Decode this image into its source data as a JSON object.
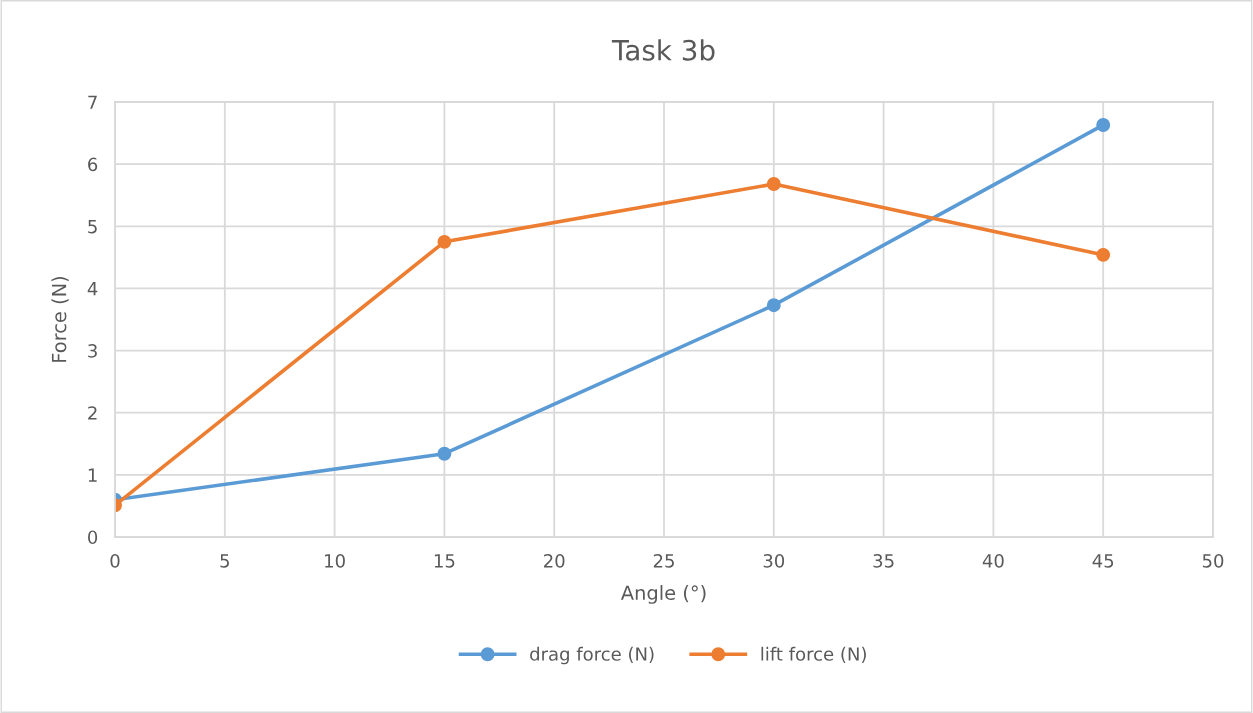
{
  "chart_data": {
    "type": "line",
    "title": "Task 3b",
    "xlabel": "Angle (°)",
    "ylabel": "Force (N)",
    "x": [
      0,
      15,
      30,
      45
    ],
    "series": [
      {
        "name": "drag force (N)",
        "color": "#5b9bd5",
        "values": [
          0.6,
          1.34,
          3.73,
          6.63
        ]
      },
      {
        "name": "lift force (N)",
        "color": "#ed7d31",
        "values": [
          0.51,
          4.75,
          5.68,
          4.54
        ]
      }
    ],
    "xlim": [
      0,
      50
    ],
    "xticks": [
      0,
      5,
      10,
      15,
      20,
      25,
      30,
      35,
      40,
      45,
      50
    ],
    "ylim": [
      0,
      7
    ],
    "yticks": [
      0,
      1,
      2,
      3,
      4,
      5,
      6,
      7
    ],
    "grid": true,
    "legend": "bottom",
    "marker": "circle",
    "line_style": "solid"
  }
}
